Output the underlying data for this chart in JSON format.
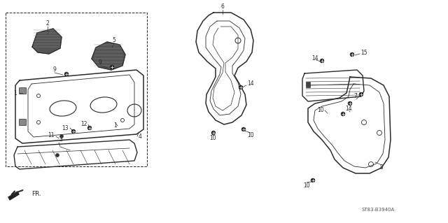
{
  "bg_color": "#ffffff",
  "line_color": "#2a2a2a",
  "text_color": "#2a2a2a",
  "diagram_code": "ST83-B3940A",
  "figsize": [
    6.4,
    3.19
  ],
  "dpi": 100,
  "lw_main": 1.0,
  "lw_inner": 0.6,
  "lw_detail": 0.5,
  "font_size": 5.5,
  "font_size_code": 5.0
}
